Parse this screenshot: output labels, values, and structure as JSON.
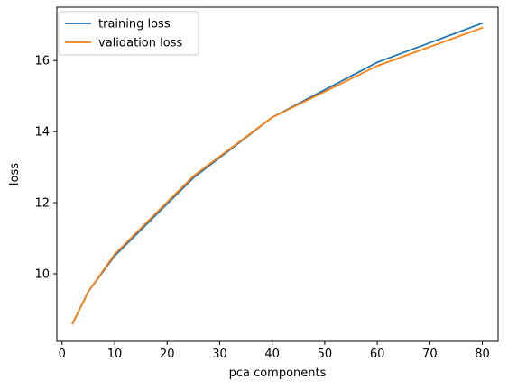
{
  "chart_data": {
    "type": "line",
    "title": "",
    "xlabel": "pca components",
    "ylabel": "loss",
    "xlim": [
      -1,
      83
    ],
    "ylim": [
      8.1,
      17.5
    ],
    "xticks": [
      0,
      10,
      20,
      30,
      40,
      50,
      60,
      70,
      80
    ],
    "yticks": [
      10,
      12,
      14,
      16
    ],
    "grid": false,
    "legend_position": "top-left",
    "series": [
      {
        "name": "training loss",
        "color": "#1f77b4",
        "x": [
          2,
          5,
          10,
          25,
          40,
          60,
          80
        ],
        "y": [
          8.6,
          9.5,
          10.5,
          12.7,
          14.4,
          15.95,
          17.05
        ]
      },
      {
        "name": "validation loss",
        "color": "#ff7f0e",
        "x": [
          2,
          5,
          10,
          25,
          40,
          60,
          80
        ],
        "y": [
          8.6,
          9.5,
          10.55,
          12.75,
          14.4,
          15.85,
          16.92
        ]
      }
    ]
  }
}
